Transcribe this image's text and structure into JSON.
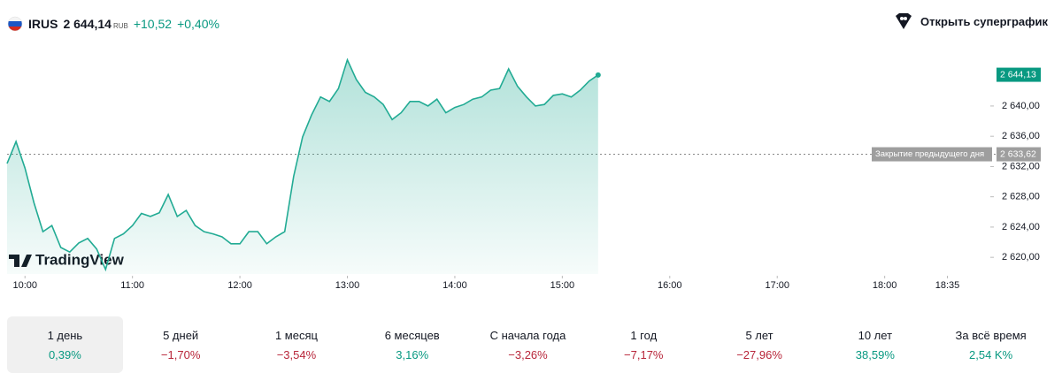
{
  "header": {
    "ticker": "IRUS",
    "price": "2 644,14",
    "currency": "RUB",
    "change": "+10,52",
    "change_percent": "+0,40%",
    "button": "Открыть суперграфик"
  },
  "chart_data": {
    "type": "line",
    "watermark": "TradingView",
    "color": "#22ab94",
    "x": [
      590,
      595,
      600,
      605,
      610,
      615,
      620,
      625,
      630,
      635,
      640,
      645,
      650,
      655,
      660,
      665,
      670,
      675,
      680,
      685,
      690,
      695,
      700,
      705,
      710,
      715,
      720,
      725,
      730,
      735,
      740,
      745,
      750,
      755,
      760,
      765,
      770,
      775,
      780,
      785,
      790,
      795,
      800,
      805,
      810,
      815,
      820,
      825,
      830,
      835,
      840,
      845,
      850,
      855,
      860,
      865,
      870,
      875,
      880,
      885,
      890,
      895,
      900,
      905,
      910,
      915,
      920
    ],
    "values": [
      2632.4,
      2635.3,
      2631.8,
      2627.2,
      2623.4,
      2624.2,
      2621.3,
      2620.7,
      2621.9,
      2622.5,
      2621.1,
      2618.4,
      2622.5,
      2623.1,
      2624.2,
      2625.8,
      2625.4,
      2625.9,
      2628.3,
      2625.4,
      2626.2,
      2624.2,
      2623.4,
      2623.1,
      2622.7,
      2621.8,
      2621.8,
      2623.4,
      2623.4,
      2621.8,
      2622.7,
      2623.4,
      2630.7,
      2635.9,
      2638.8,
      2641.2,
      2640.6,
      2642.3,
      2646.1,
      2643.5,
      2641.8,
      2641.2,
      2640.2,
      2638.2,
      2639.1,
      2640.6,
      2640.6,
      2640.0,
      2640.9,
      2639.1,
      2639.8,
      2640.2,
      2640.9,
      2641.2,
      2642.1,
      2642.3,
      2644.9,
      2642.6,
      2641.2,
      2640.0,
      2640.2,
      2641.4,
      2641.6,
      2641.2,
      2642.1,
      2643.3,
      2644.1
    ],
    "xlim": [
      590,
      1137
    ],
    "ylim": [
      2617.8,
      2647.0
    ],
    "xticks": [
      {
        "value": 600,
        "label": "10:00"
      },
      {
        "value": 660,
        "label": "11:00"
      },
      {
        "value": 720,
        "label": "12:00"
      },
      {
        "value": 780,
        "label": "13:00"
      },
      {
        "value": 840,
        "label": "14:00"
      },
      {
        "value": 900,
        "label": "15:00"
      },
      {
        "value": 960,
        "label": "16:00"
      },
      {
        "value": 1020,
        "label": "17:00"
      },
      {
        "value": 1080,
        "label": "18:00"
      },
      {
        "value": 1115,
        "label": "18:35"
      }
    ],
    "yticks": [
      {
        "value": 2620,
        "label": "2 620,00"
      },
      {
        "value": 2624,
        "label": "2 624,00"
      },
      {
        "value": 2628,
        "label": "2 628,00"
      },
      {
        "value": 2632,
        "label": "2 632,00"
      },
      {
        "value": 2636,
        "label": "2 636,00"
      },
      {
        "value": 2640,
        "label": "2 640,00"
      }
    ],
    "last_price": {
      "value": 2644.13,
      "label": "2 644,13"
    },
    "previous_close": {
      "value": 2633.62,
      "label": "2 633,62",
      "name": "Закрытие предыдущего дня"
    }
  },
  "periods": [
    {
      "label": "1 день",
      "value": "0,39%",
      "color": "#089981"
    },
    {
      "label": "5 дней",
      "value": "−1,70%",
      "color": "#b8263a"
    },
    {
      "label": "1 месяц",
      "value": "−3,54%",
      "color": "#b8263a"
    },
    {
      "label": "6 месяцев",
      "value": "3,16%",
      "color": "#089981"
    },
    {
      "label": "С начала года",
      "value": "−3,26%",
      "color": "#b8263a"
    },
    {
      "label": "1 год",
      "value": "−7,17%",
      "color": "#b8263a"
    },
    {
      "label": "5 лет",
      "value": "−27,96%",
      "color": "#b8263a"
    },
    {
      "label": "10 лет",
      "value": "38,59%",
      "color": "#089981"
    },
    {
      "label": "За всё время",
      "value": "2,54 K%",
      "color": "#089981"
    }
  ]
}
